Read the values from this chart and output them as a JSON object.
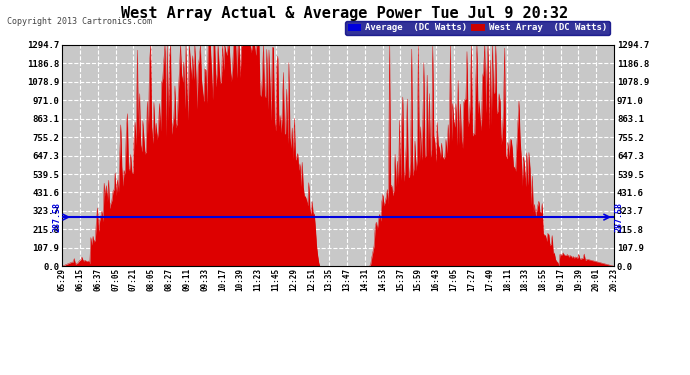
{
  "title": "West Array Actual & Average Power Tue Jul 9 20:32",
  "copyright": "Copyright 2013 Cartronics.com",
  "legend_labels": [
    "Average  (DC Watts)",
    "West Array  (DC Watts)"
  ],
  "legend_colors": [
    "#0000dd",
    "#cc0000"
  ],
  "avg_value": 287.58,
  "y_max": 1294.7,
  "y_ticks": [
    0.0,
    107.9,
    215.8,
    323.7,
    431.6,
    539.5,
    647.3,
    755.2,
    863.1,
    971.0,
    1078.9,
    1186.8,
    1294.7
  ],
  "bg_color": "#ffffff",
  "plot_bg_color": "#c8c8c8",
  "grid_color": "#ffffff",
  "fill_color": "#dd0000",
  "avg_line_color": "#0000dd",
  "x_tick_labels": [
    "05:29",
    "06:15",
    "06:37",
    "07:05",
    "07:21",
    "08:05",
    "08:27",
    "09:11",
    "09:33",
    "10:17",
    "10:39",
    "11:23",
    "11:45",
    "12:29",
    "12:51",
    "13:35",
    "13:47",
    "14:31",
    "14:53",
    "15:37",
    "15:59",
    "16:43",
    "17:05",
    "17:27",
    "17:49",
    "18:11",
    "18:33",
    "18:55",
    "19:17",
    "19:39",
    "20:01",
    "20:23"
  ]
}
